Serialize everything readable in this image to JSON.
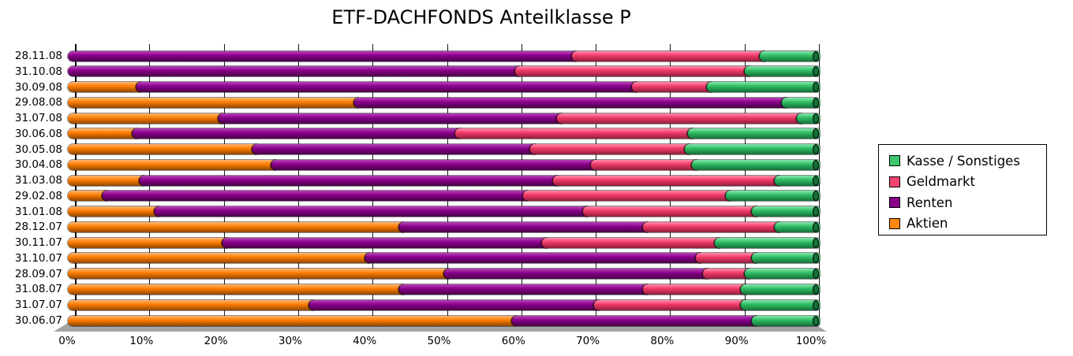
{
  "title": "ETF-DACHFONDS Anteilklasse P",
  "axis": {
    "x_ticks": [
      "0%",
      "10%",
      "20%",
      "30%",
      "40%",
      "50%",
      "60%",
      "70%",
      "80%",
      "90%",
      "100%"
    ]
  },
  "legend": {
    "items": [
      {
        "key": "kasse",
        "label": "Kasse / Sonstiges"
      },
      {
        "key": "geldmarkt",
        "label": "Geldmarkt"
      },
      {
        "key": "renten",
        "label": "Renten"
      },
      {
        "key": "aktien",
        "label": "Aktien"
      }
    ]
  },
  "colors": {
    "aktien": {
      "base": "#FF7D00",
      "light": "#FFB066",
      "dark": "#8F4700",
      "swatch": "#FF8713"
    },
    "renten": {
      "base": "#8B008B",
      "light": "#B23CB2",
      "dark": "#470047",
      "swatch": "#8B008B"
    },
    "geldmarkt": {
      "base": "#F23A69",
      "light": "#FF82A4",
      "dark": "#8F1F3C",
      "swatch": "#F4436F"
    },
    "kasse": {
      "base": "#2EBD62",
      "light": "#7CE3A4",
      "dark": "#156F3A",
      "swatch": "#3DC86F"
    }
  },
  "chart_data": {
    "type": "bar",
    "orientation": "horizontal",
    "stacked": true,
    "unit": "%",
    "title": "ETF-DACHFONDS Anteilklasse P",
    "xlabel": "",
    "ylabel": "",
    "xlim": [
      0,
      100
    ],
    "grid": "vertical",
    "legend_position": "right",
    "categories": [
      "28.11.08",
      "31.10.08",
      "30.09.08",
      "29.08.08",
      "31.07.08",
      "30.06.08",
      "30.05.08",
      "30.04.08",
      "31.03.08",
      "29.02.08",
      "31.01.08",
      "28.12.07",
      "30.11.07",
      "31.10.07",
      "28.09.07",
      "31.08.07",
      "31.07.07",
      "30.06.07"
    ],
    "series": [
      {
        "name": "Aktien",
        "key": "aktien",
        "values": [
          0,
          0,
          9,
          38,
          20,
          8.5,
          24.5,
          27,
          9.5,
          4.5,
          11.5,
          44,
          20.5,
          39.5,
          50,
          44,
          32,
          59
        ]
      },
      {
        "name": "Renten",
        "key": "renten",
        "values": [
          67,
          59.5,
          66,
          57,
          45,
          43,
          37,
          42.5,
          55,
          56,
          57,
          32.5,
          42.5,
          44,
          34.5,
          32.5,
          38,
          32
        ]
      },
      {
        "name": "Geldmarkt",
        "key": "geldmarkt",
        "values": [
          25,
          30.5,
          10,
          0,
          32,
          31,
          20.5,
          13.5,
          29.5,
          27,
          22.5,
          17.5,
          23,
          7.5,
          5.5,
          13,
          19.5,
          0
        ]
      },
      {
        "name": "Kasse / Sonstiges",
        "key": "kasse",
        "values": [
          8,
          10,
          15,
          5,
          3,
          17.5,
          18,
          17,
          6,
          12.5,
          9,
          6,
          14,
          9,
          10,
          10.5,
          10.5,
          9
        ]
      }
    ]
  }
}
